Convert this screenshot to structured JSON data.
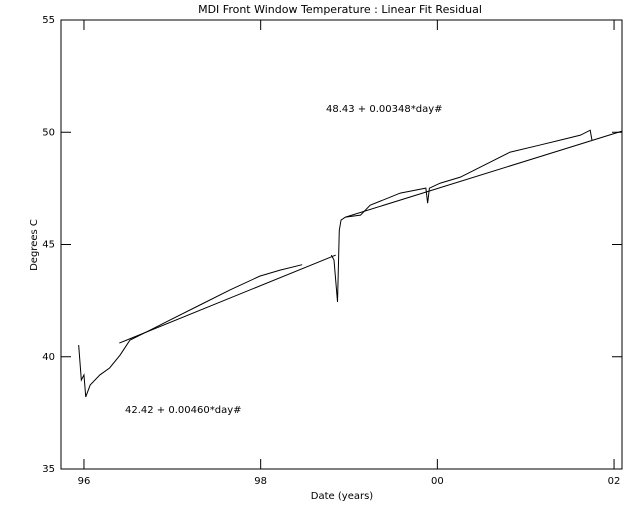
{
  "chart_data": {
    "type": "line",
    "title": "MDI Front Window Temperature : Linear Fit Residual",
    "xlabel": "Date (years)",
    "ylabel": "Degrees C",
    "annotations": [
      "48.43 +   0.00348*day#",
      "42.42 +   0.00460*day#"
    ],
    "xlim": [
      95.74,
      102.09
    ],
    "xticks": [
      96,
      98,
      {
        "value": 100,
        "label": "00"
      },
      {
        "value": 102,
        "label": "02"
      }
    ],
    "ylim": [
      35,
      55
    ],
    "yticks": [
      35,
      40,
      45,
      50,
      55
    ],
    "series": [
      {
        "color": "#000000",
        "x": [
          95.94,
          95.97,
          96.0,
          96.02,
          96.07,
          96.18,
          96.29,
          96.41,
          96.52,
          96.75,
          96.97,
          97.31,
          97.65,
          97.99,
          98.22,
          98.47,
          null,
          98.8,
          98.83,
          98.87,
          98.89,
          98.91,
          98.96,
          99.13,
          99.24,
          99.58,
          99.87,
          99.89,
          99.91,
          100.03,
          100.26,
          100.6,
          100.82,
          101.16,
          101.39,
          101.62,
          101.73,
          101.75
        ],
        "values": [
          40.52,
          38.96,
          39.19,
          38.21,
          38.74,
          39.19,
          39.5,
          40.08,
          40.74,
          41.19,
          41.63,
          42.3,
          42.97,
          43.59,
          43.86,
          44.1,
          null,
          44.53,
          44.31,
          42.44,
          45.64,
          46.09,
          46.22,
          46.31,
          46.75,
          47.29,
          47.51,
          46.84,
          47.51,
          47.73,
          48.0,
          48.67,
          49.11,
          49.43,
          49.65,
          49.87,
          50.09,
          49.65
        ]
      },
      {
        "color": "#000000",
        "x": [
          96.4,
          98.85
        ],
        "values": [
          40.61,
          44.53
        ]
      },
      {
        "color": "#000000",
        "x": [
          98.96,
          102.09
        ],
        "values": [
          46.22,
          50.05
        ]
      }
    ]
  }
}
